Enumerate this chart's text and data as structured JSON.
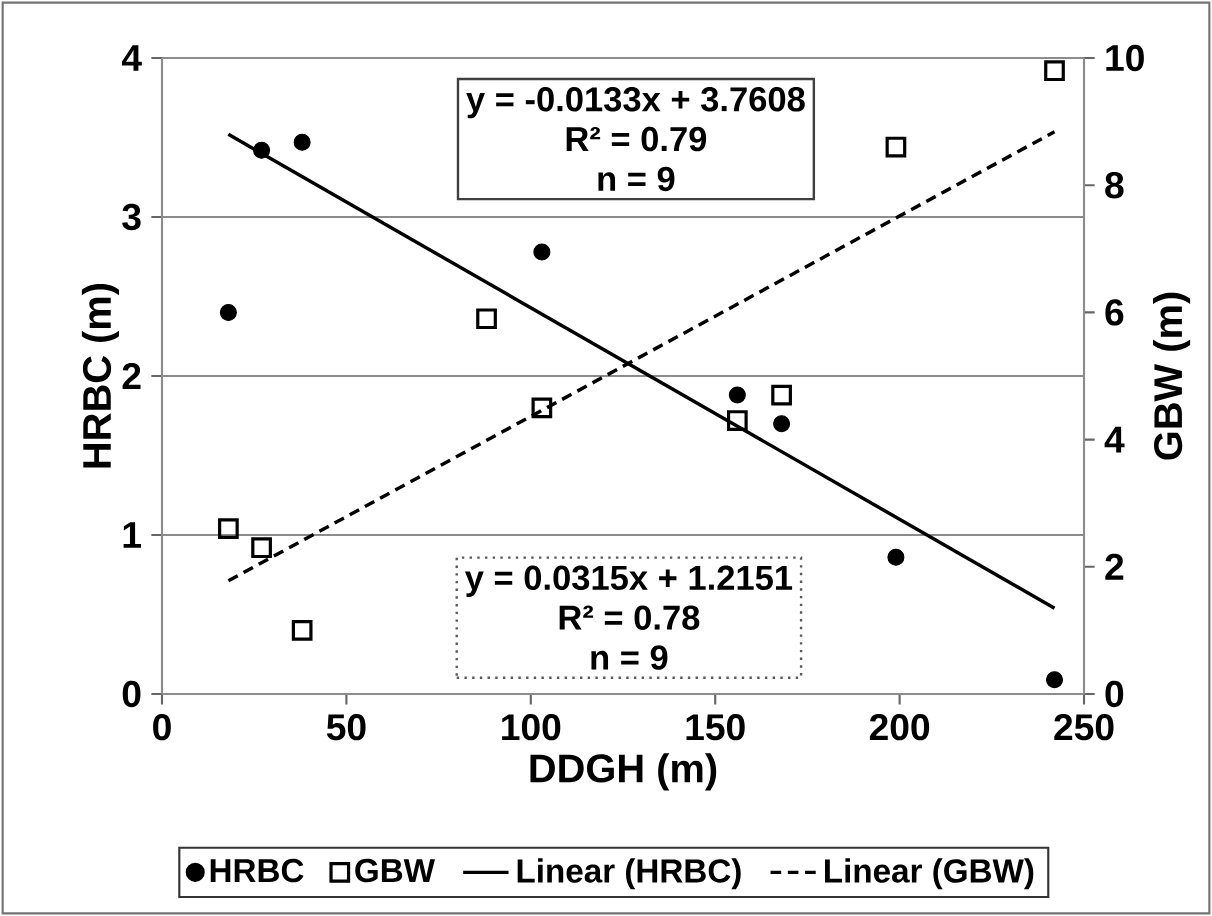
{
  "chart_data": {
    "type": "scatter",
    "xlabel": "DDGH (m)",
    "ylabel": "HRBC (m)",
    "y2label": "GBW (m)",
    "xlim": [
      0,
      250
    ],
    "xticks": [
      0,
      50,
      100,
      150,
      200,
      250
    ],
    "ylim": [
      0,
      4
    ],
    "yticks": [
      0,
      1,
      2,
      3,
      4
    ],
    "y2lim": [
      0,
      10
    ],
    "y2ticks": [
      0,
      2,
      4,
      6,
      8,
      10
    ],
    "grid": "y",
    "legend": "bottom",
    "annotations": [
      "y = -0.0133x + 3.7608",
      "R² = 0.79",
      "n = 9",
      "y = 0.0315x + 1.2151",
      "R² = 0.78",
      "n = 9"
    ],
    "series": [
      {
        "name": "HRBC",
        "axis": "y",
        "marker": "circle",
        "color": "#000000",
        "x": [
          18,
          27,
          38,
          103,
          156,
          168,
          199,
          242
        ],
        "values": [
          2.4,
          3.42,
          3.47,
          2.78,
          1.88,
          1.7,
          0.86,
          0.09
        ]
      },
      {
        "name": "GBW",
        "axis": "y2",
        "marker": "square",
        "color": "#000000",
        "x": [
          18,
          27,
          38,
          88,
          103,
          156,
          168,
          199,
          242
        ],
        "values": [
          2.6,
          2.3,
          1.0,
          5.9,
          4.5,
          4.3,
          4.7,
          8.6,
          9.8
        ]
      },
      {
        "name": "Linear (HRBC)",
        "type": "line",
        "axis": "y",
        "marker": "none",
        "line_style": "solid",
        "color": "#000000",
        "x": [
          18,
          242
        ],
        "values": [
          3.52,
          0.54
        ]
      },
      {
        "name": "Linear (GBW)",
        "type": "line",
        "axis": "y2",
        "marker": "none",
        "line_style": "dashed",
        "color": "#000000",
        "x": [
          18,
          242
        ],
        "values": [
          1.78,
          8.84
        ]
      }
    ]
  }
}
